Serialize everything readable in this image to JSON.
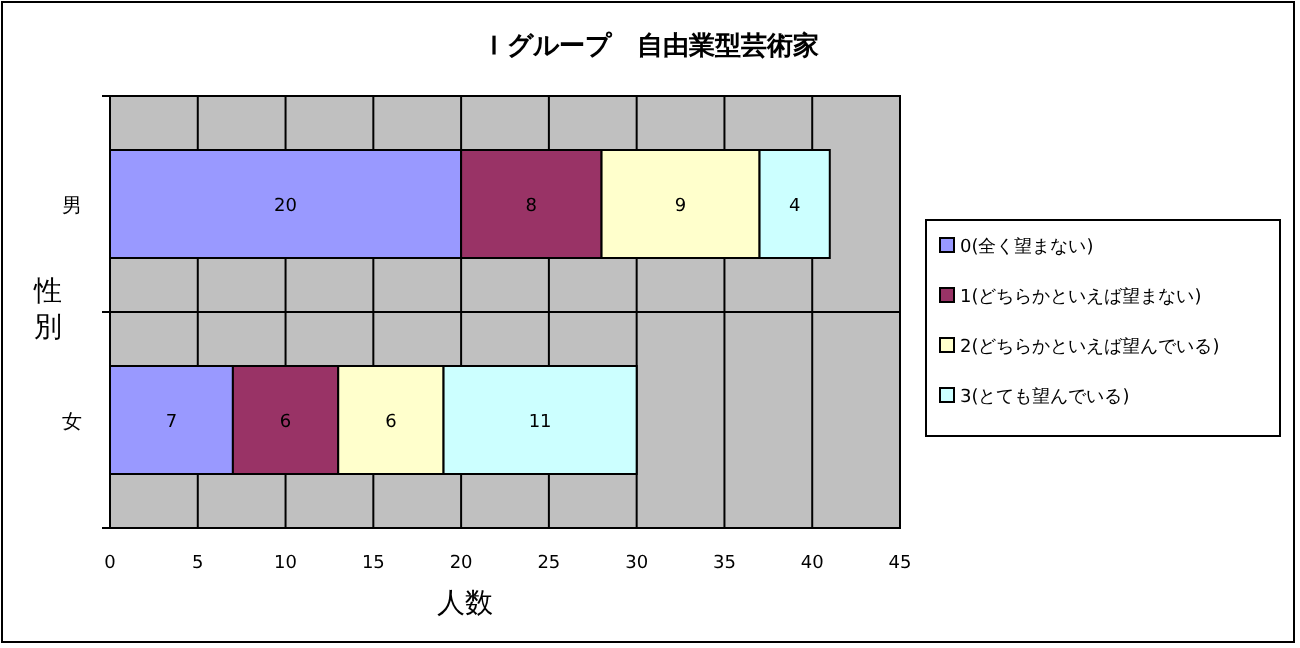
{
  "chart_data": {
    "type": "bar",
    "title": "Ｉグループ　自由業型芸術家",
    "orientation": "horizontal",
    "stacked": true,
    "xlabel": "人数",
    "ylabel": "性別",
    "categories": [
      "男",
      "女"
    ],
    "series": [
      {
        "name": "0(全く望まない)",
        "color": "#9999ff",
        "values": [
          20,
          7
        ]
      },
      {
        "name": "1(どちらかといえば望まない)",
        "color": "#993366",
        "values": [
          8,
          6
        ]
      },
      {
        "name": "2(どちらかといえば望んでいる)",
        "color": "#ffffcc",
        "values": [
          9,
          6
        ]
      },
      {
        "name": "3(とても望んでいる)",
        "color": "#ccffff",
        "values": [
          4,
          11
        ]
      }
    ],
    "xlim": [
      0,
      45
    ],
    "xticks": [
      0,
      5,
      10,
      15,
      20,
      25,
      30,
      35,
      40,
      45
    ],
    "grid": true,
    "legend": "right",
    "data_labels": true
  }
}
